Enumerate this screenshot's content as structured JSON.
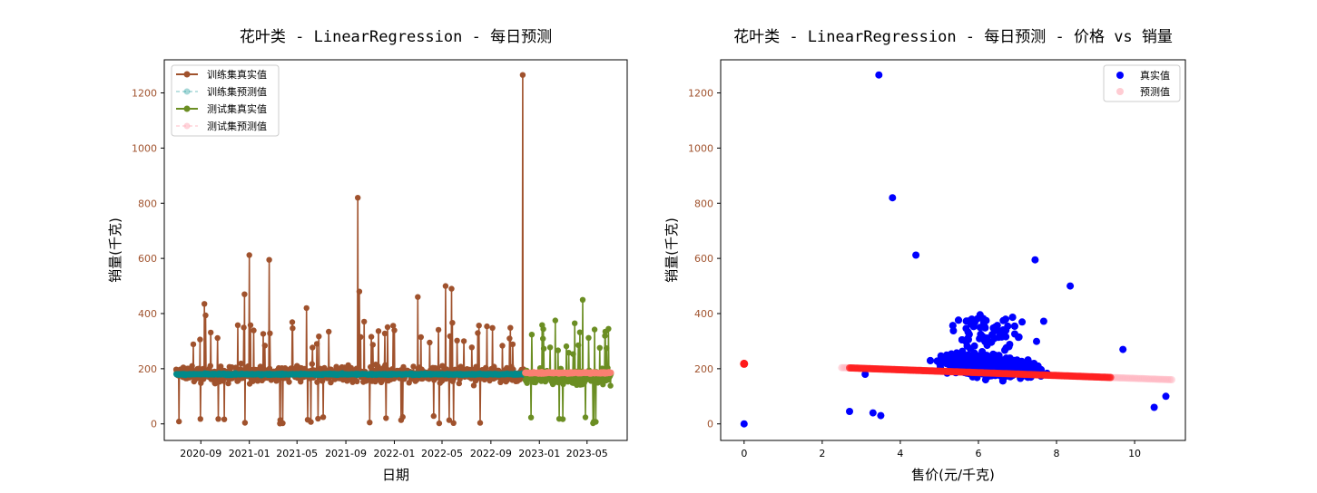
{
  "chart_data": [
    {
      "type": "line",
      "title": "花叶类 - LinearRegression - 每日预测",
      "xlabel": "日期",
      "ylabel": "销量(千克)",
      "xlim": [
        "2020-06-01",
        "2023-08-10"
      ],
      "ylim": [
        -60,
        1320
      ],
      "x_ticks": [
        "2020-09",
        "2021-01",
        "2021-05",
        "2021-09",
        "2022-01",
        "2022-05",
        "2022-09",
        "2023-01",
        "2023-05"
      ],
      "y_ticks": [
        0,
        200,
        400,
        600,
        800,
        1000,
        1200
      ],
      "grid": false,
      "legend_position": "top-left",
      "train_period": [
        "2020-07-01",
        "2022-11-25"
      ],
      "test_period": [
        "2022-11-26",
        "2023-06-30"
      ],
      "series": [
        {
          "name": "训练集真实值",
          "color": "#a0522d",
          "style": "solid-marker",
          "baseline": 180,
          "spikes": [
            [
              "2020-09-10",
              435
            ],
            [
              "2020-12-20",
              470
            ],
            [
              "2021-01-01",
              612
            ],
            [
              "2021-02-20",
              595
            ],
            [
              "2021-05-25",
              420
            ],
            [
              "2021-10-01",
              820
            ],
            [
              "2021-10-05",
              480
            ],
            [
              "2022-03-01",
              460
            ],
            [
              "2022-05-10",
              500
            ],
            [
              "2022-05-25",
              490
            ],
            [
              "2022-11-20",
              1265
            ]
          ]
        },
        {
          "name": "训练集预测值",
          "color": "#008b8b",
          "style": "dashed-marker",
          "value": 180
        },
        {
          "name": "测试集真实值",
          "color": "#6b8e23",
          "style": "solid-marker",
          "baseline": 170,
          "spikes": [
            [
              "2023-04-20",
              450
            ],
            [
              "2023-02-10",
              375
            ]
          ]
        },
        {
          "name": "测试集预测值",
          "color": "#fa8072",
          "style": "dashed-marker",
          "value": 185
        }
      ]
    },
    {
      "type": "scatter",
      "title": "花叶类 - LinearRegression - 每日预测 - 价格 vs 销量",
      "xlabel": "售价(元/千克)",
      "ylabel": "销量(千克)",
      "xlim": [
        -0.6,
        11.3
      ],
      "ylim": [
        -60,
        1320
      ],
      "x_ticks": [
        0,
        2,
        4,
        6,
        8,
        10
      ],
      "y_ticks": [
        0,
        200,
        400,
        600,
        800,
        1000,
        1200
      ],
      "grid": false,
      "legend_position": "top-right",
      "regression_line": {
        "slope": -5.2,
        "intercept": 217
      },
      "series": [
        {
          "name": "真实值",
          "color": "#0000ff",
          "points": [
            [
              0,
              0
            ],
            [
              3.45,
              1265
            ],
            [
              3.8,
              820
            ],
            [
              4.4,
              612
            ],
            [
              7.45,
              595
            ],
            [
              8.35,
              500
            ],
            [
              3.1,
              180
            ],
            [
              2.7,
              45
            ],
            [
              3.3,
              40
            ],
            [
              3.5,
              30
            ],
            [
              10.8,
              100
            ],
            [
              10.5,
              60
            ],
            [
              9.7,
              270
            ]
          ]
        },
        {
          "name": "预测值",
          "color": "#ffb6c1",
          "points": [
            [
              0,
              218
            ],
            [
              2.5,
              205
            ],
            [
              11.0,
              150
            ]
          ]
        }
      ]
    }
  ]
}
